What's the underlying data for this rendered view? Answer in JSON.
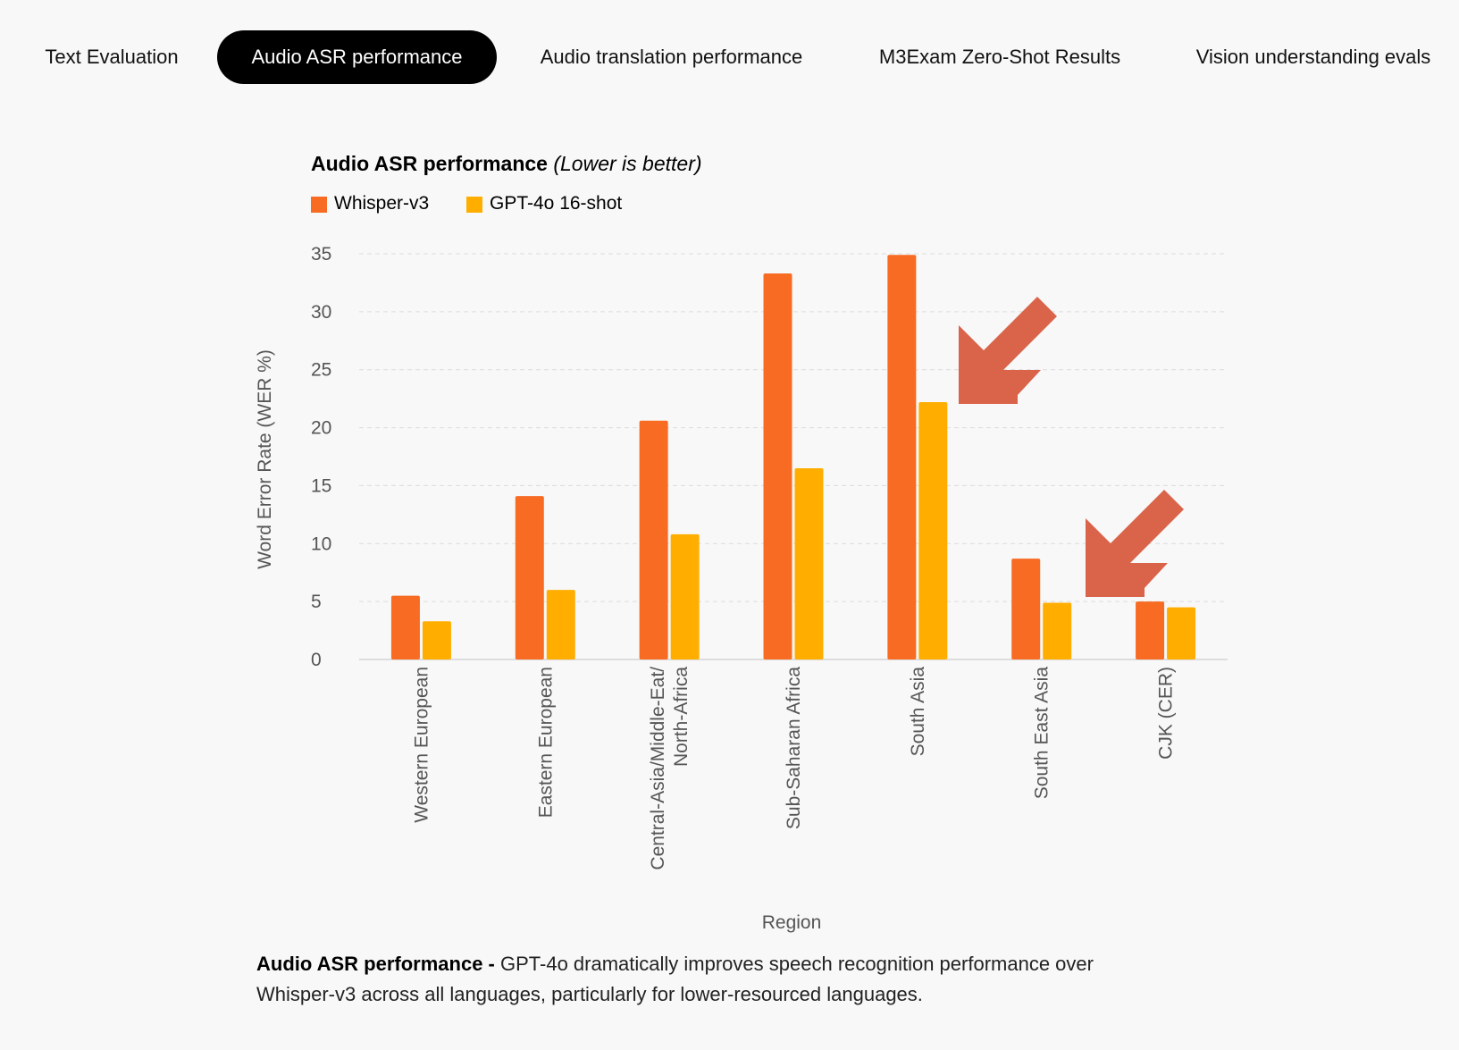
{
  "tabs": [
    {
      "label": "Text Evaluation",
      "active": false
    },
    {
      "label": "Audio ASR performance",
      "active": true
    },
    {
      "label": "Audio translation performance",
      "active": false
    },
    {
      "label": "M3Exam Zero-Shot Results",
      "active": false
    },
    {
      "label": "Vision understanding evals",
      "active": false
    }
  ],
  "chart_data": {
    "type": "bar",
    "title": "Audio ASR performance",
    "title_note": "(Lower is better)",
    "xlabel": "Region",
    "ylabel": "Word Error Rate (WER %)",
    "ylim": [
      0,
      35
    ],
    "yticks": [
      "0",
      "5",
      "10",
      "15",
      "20",
      "25",
      "30",
      "35"
    ],
    "grid": true,
    "legend_position": "top-left",
    "categories": [
      [
        "Western European"
      ],
      [
        "Eastern European"
      ],
      [
        "Central-Asia/Middle-Eat/",
        "North-Africa"
      ],
      [
        "Sub-Saharan Africa"
      ],
      [
        "South Asia"
      ],
      [
        "South East Asia"
      ],
      [
        "CJK (CER)"
      ]
    ],
    "series": [
      {
        "name": "Whisper-v3",
        "color": "#f76b23",
        "values": [
          5.5,
          14.1,
          20.6,
          33.3,
          34.9,
          8.7,
          5.0
        ]
      },
      {
        "name": "GPT-4o 16-shot",
        "color": "#ffae00",
        "values": [
          3.3,
          6.0,
          10.8,
          16.5,
          22.2,
          4.9,
          4.5
        ]
      }
    ],
    "annotations": [
      {
        "type": "arrow",
        "icon": "arrow-down-left-icon",
        "color": "#d9644a",
        "points_to": "South Asia GPT-4o 16-shot"
      },
      {
        "type": "arrow",
        "icon": "arrow-down-left-icon",
        "color": "#d9644a",
        "points_to": "CJK (CER) Whisper-v3"
      }
    ]
  },
  "caption": {
    "lead": "Audio ASR performance - ",
    "body": "GPT-4o dramatically improves speech recognition performance over Whisper-v3 across all languages, particularly for lower-resourced languages."
  }
}
